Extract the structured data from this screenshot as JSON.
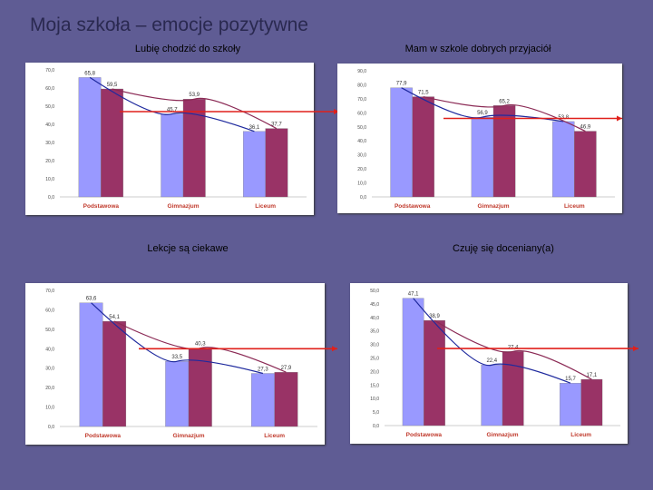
{
  "slide": {
    "title": "Moja szkoła – emocje pozytywne"
  },
  "colors": {
    "series_a": "#9999ff",
    "series_b": "#993366",
    "trend": "#1f2a9e",
    "trend_b": "#8b2a55",
    "reference": "#e0201b"
  },
  "chart_data": [
    {
      "type": "bar",
      "title": "Lubię chodzić do szkoły",
      "categories": [
        "Podstawowa",
        "Gimnazjum",
        "Liceum"
      ],
      "ylim": [
        0,
        70
      ],
      "ytick_step": 10,
      "yticks": [
        "0,0",
        "10,0",
        "20,0",
        "30,0",
        "40,0",
        "50,0",
        "60,0",
        "70,0"
      ],
      "series": [
        {
          "values": [
            65.8,
            45.7,
            36.1
          ],
          "labels": [
            "65,8",
            "45,7",
            "36,1"
          ]
        },
        {
          "values": [
            59.5,
            53.9,
            37.7
          ],
          "labels": [
            "59,5",
            "53,9",
            "37,7"
          ]
        }
      ],
      "reference_line": 47
    },
    {
      "type": "bar",
      "title": "Mam w szkole dobrych przyjaciół",
      "categories": [
        "Podstawowa",
        "Gimnazjum",
        "Liceum"
      ],
      "ylim": [
        0,
        90
      ],
      "ytick_step": 10,
      "yticks": [
        "0,0",
        "10,0",
        "20,0",
        "30,0",
        "40,0",
        "50,0",
        "60,0",
        "70,0",
        "80,0",
        "90,0"
      ],
      "series": [
        {
          "values": [
            77.9,
            56.9,
            53.8
          ],
          "labels": [
            "77,9",
            "56,9",
            "53,8"
          ]
        },
        {
          "values": [
            71.5,
            65.2,
            46.9
          ],
          "labels": [
            "71,5",
            "65,2",
            "46,9"
          ]
        }
      ],
      "reference_line": 56
    },
    {
      "type": "bar",
      "title": "Lekcje są ciekawe",
      "categories": [
        "Podstawowa",
        "Gimnazjum",
        "Liceum"
      ],
      "ylim": [
        0,
        70
      ],
      "ytick_step": 10,
      "yticks": [
        "0,0",
        "10,0",
        "20,0",
        "30,0",
        "40,0",
        "50,0",
        "60,0",
        "70,0"
      ],
      "series": [
        {
          "values": [
            63.6,
            33.5,
            27.3
          ],
          "labels": [
            "63,6",
            "33,5",
            "27,3"
          ]
        },
        {
          "values": [
            54.1,
            40.3,
            27.9
          ],
          "labels": [
            "54,1",
            "40,3",
            "27,9"
          ]
        }
      ],
      "reference_line": 40
    },
    {
      "type": "bar",
      "title": "Czuję się doceniany(a)",
      "categories": [
        "Podstawowa",
        "Gimnazjum",
        "Liceum"
      ],
      "ylim": [
        0,
        50
      ],
      "ytick_step": 5,
      "yticks": [
        "0,0",
        "5,0",
        "10,0",
        "15,0",
        "20,0",
        "25,0",
        "30,0",
        "35,0",
        "40,0",
        "45,0",
        "50,0"
      ],
      "series": [
        {
          "values": [
            47.1,
            22.4,
            15.7
          ],
          "labels": [
            "47,1",
            "22,4",
            "15,7"
          ]
        },
        {
          "values": [
            38.9,
            27.4,
            17.1
          ],
          "labels": [
            "38,9",
            "27,4",
            "17,1"
          ]
        }
      ],
      "reference_line": 28.5
    }
  ]
}
